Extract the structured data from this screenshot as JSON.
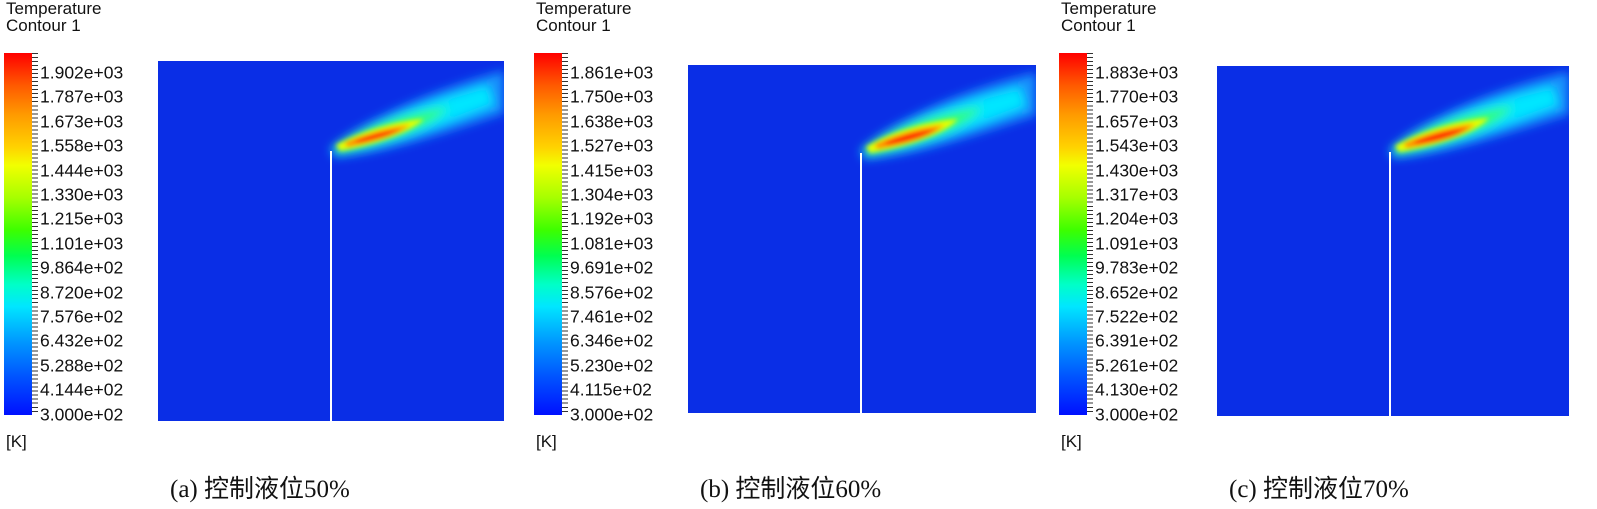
{
  "panels": [
    {
      "title_line1": "Temperature",
      "title_line2": "Contour 1",
      "unit": "[K]",
      "caption": "(a) 控制液位50%",
      "colorbar_labels": [
        "1.902e+03",
        "1.787e+03",
        "1.673e+03",
        "1.558e+03",
        "1.444e+03",
        "1.330e+03",
        "1.215e+03",
        "1.101e+03",
        "9.864e+02",
        "8.720e+02",
        "7.576e+02",
        "6.432e+02",
        "5.288e+02",
        "4.144e+02",
        "3.000e+02"
      ]
    },
    {
      "title_line1": "Temperature",
      "title_line2": "Contour 1",
      "unit": "[K]",
      "caption": "(b) 控制液位60%",
      "colorbar_labels": [
        "1.861e+03",
        "1.750e+03",
        "1.638e+03",
        "1.527e+03",
        "1.415e+03",
        "1.304e+03",
        "1.192e+03",
        "1.081e+03",
        "9.691e+02",
        "8.576e+02",
        "7.461e+02",
        "6.346e+02",
        "5.230e+02",
        "4.115e+02",
        "3.000e+02"
      ]
    },
    {
      "title_line1": "Temperature",
      "title_line2": "Contour 1",
      "unit": "[K]",
      "caption": "(c) 控制液位70%",
      "colorbar_labels": [
        "1.883e+03",
        "1.770e+03",
        "1.657e+03",
        "1.543e+03",
        "1.430e+03",
        "1.317e+03",
        "1.204e+03",
        "1.091e+03",
        "9.783e+02",
        "8.652e+02",
        "7.522e+02",
        "6.391e+02",
        "5.261e+02",
        "4.130e+02",
        "3.000e+02"
      ]
    }
  ],
  "colors": {
    "background_field": "#0a2ee6",
    "wall": "#ffffff"
  }
}
